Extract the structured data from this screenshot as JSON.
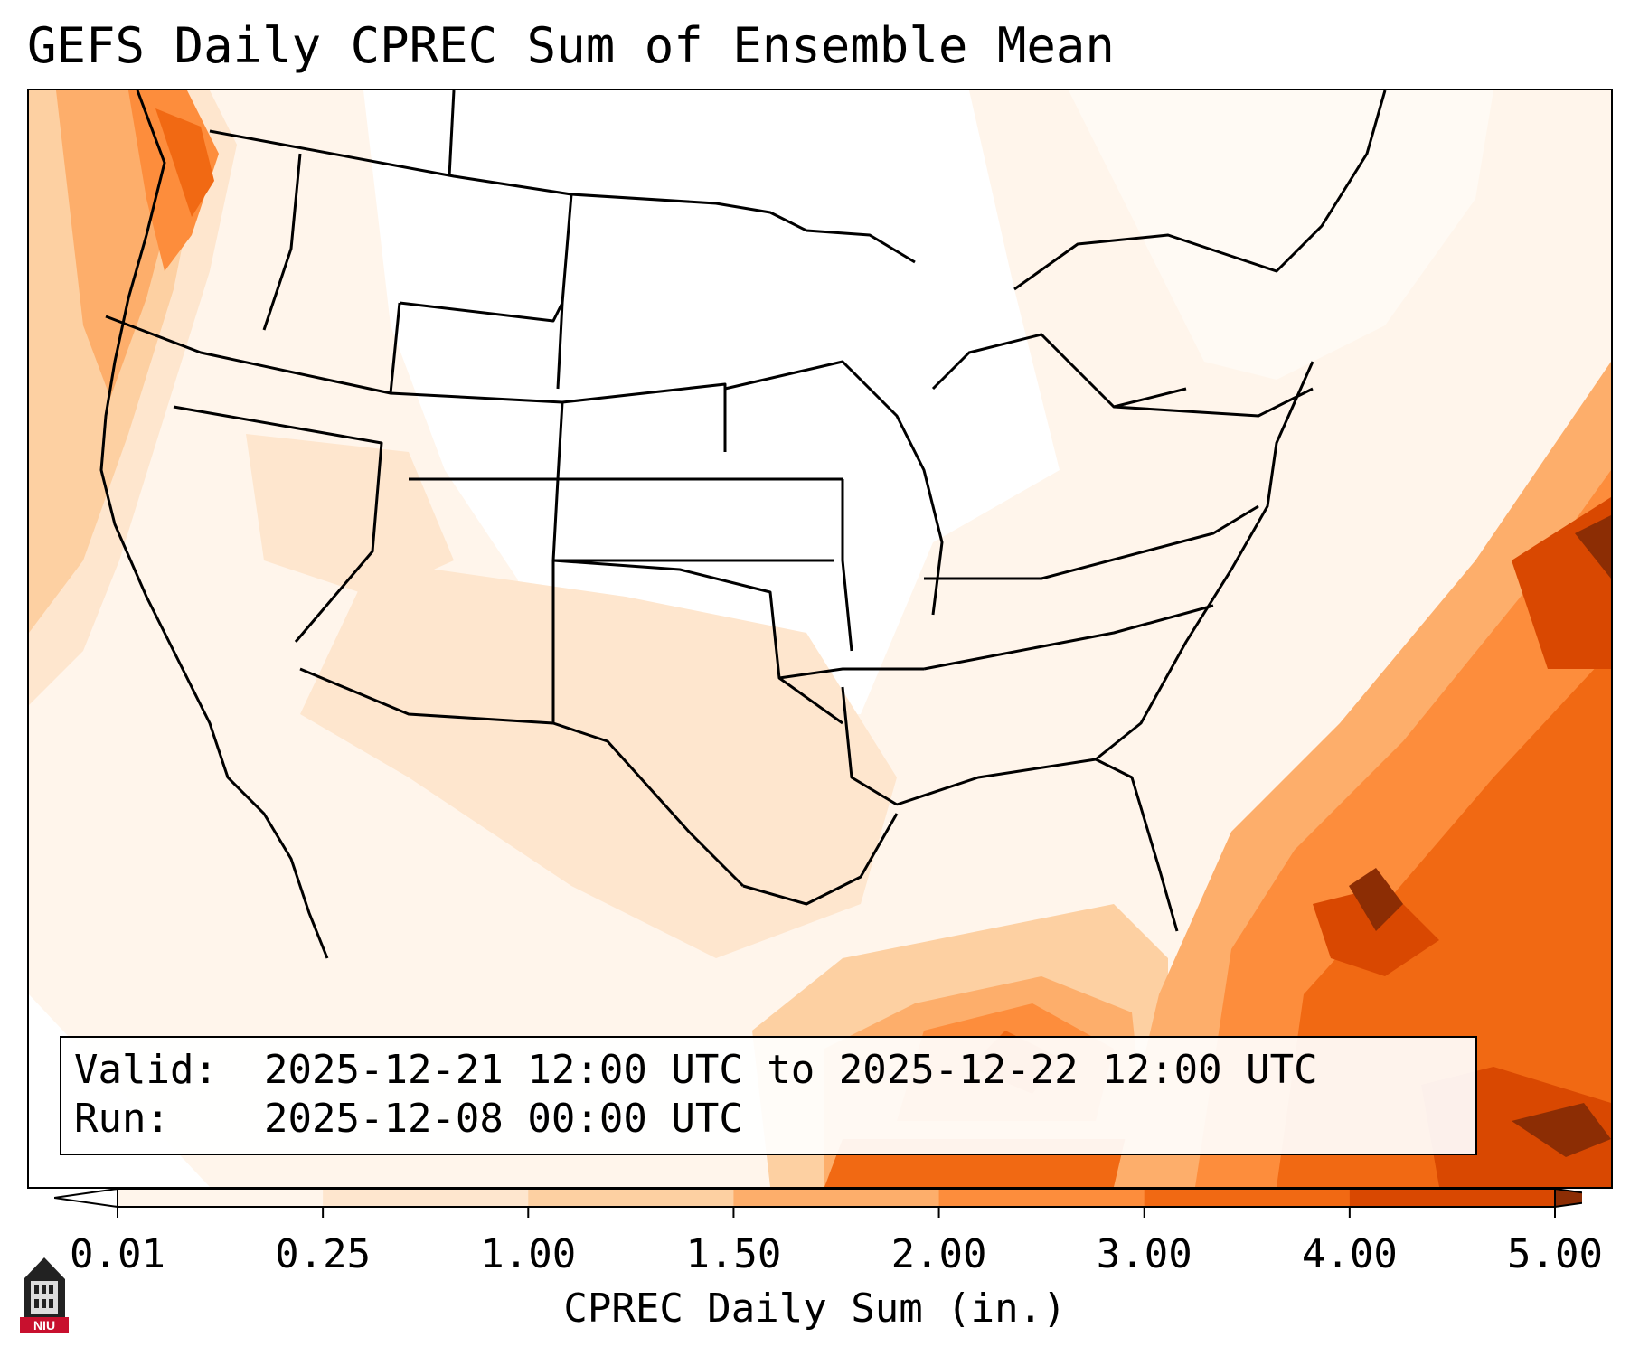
{
  "title": "GEFS Daily CPREC Sum of Ensemble Mean",
  "info": {
    "valid_label": "Valid:",
    "valid_value": "2025-12-21 12:00 UTC to 2025-12-22 12:00 UTC",
    "run_label": "Run:",
    "run_value": "2025-12-08 00:00 UTC"
  },
  "colorbar": {
    "label": "CPREC Daily Sum (in.)",
    "ticks": [
      "0.01",
      "0.25",
      "1.00",
      "1.50",
      "2.00",
      "3.00",
      "4.00",
      "5.00"
    ],
    "bins": [
      {
        "from": "0.01",
        "to": "0.25",
        "color": "#fff5eb"
      },
      {
        "from": "0.25",
        "to": "1.00",
        "color": "#fee6ce"
      },
      {
        "from": "1.00",
        "to": "1.50",
        "color": "#fdd0a2"
      },
      {
        "from": "1.50",
        "to": "2.00",
        "color": "#fdae6b"
      },
      {
        "from": "2.00",
        "to": "3.00",
        "color": "#fd8d3c"
      },
      {
        "from": "3.00",
        "to": "4.00",
        "color": "#f16913"
      },
      {
        "from": "4.00",
        "to": "5.00",
        "color": "#d94801"
      }
    ],
    "under_color": "#ffffff",
    "over_color": "#8c2d04",
    "extend": "both"
  },
  "map": {
    "projection": "Lambert conformal, CONUS",
    "land_border_color": "#000000",
    "regions_of_heavier_precip": [
      "Pacific Northwest coast",
      "Atlantic off Southeast US",
      "Gulf of Mexico",
      "Florida"
    ]
  },
  "logo": {
    "text": "NIU",
    "color": "#c8102e"
  }
}
